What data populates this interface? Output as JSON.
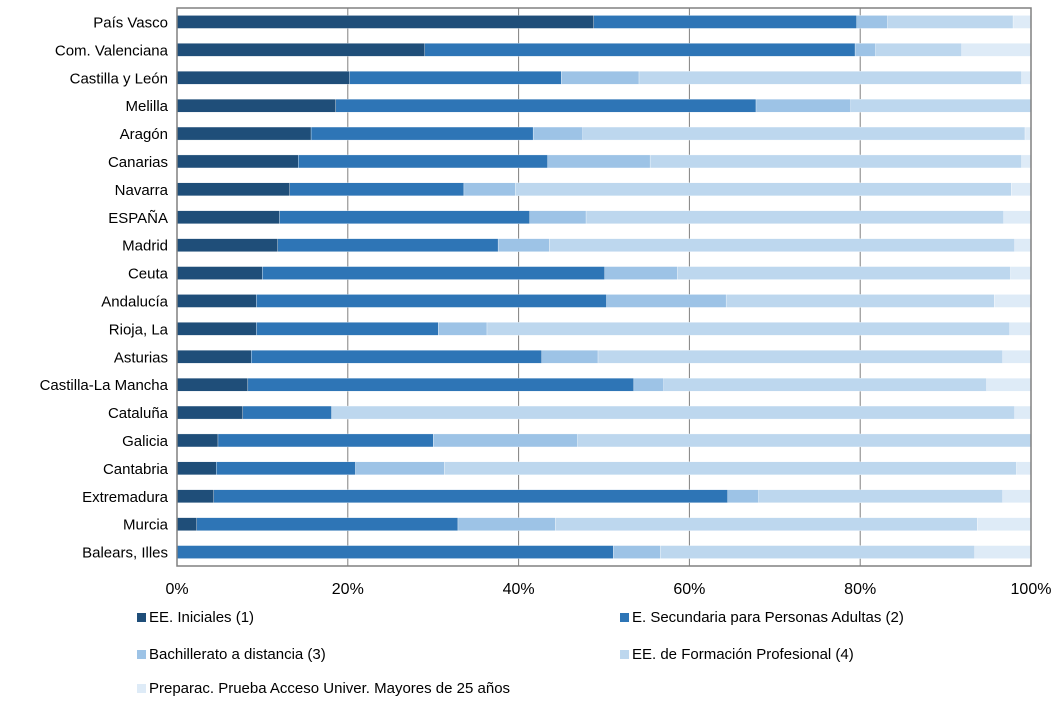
{
  "chart_data": {
    "type": "bar",
    "orientation": "horizontal",
    "stacked": "percent",
    "categories": [
      "País Vasco",
      "Com. Valenciana",
      "Castilla y León",
      "Melilla",
      "Aragón",
      "Canarias",
      "Navarra",
      "ESPAÑA",
      "Madrid",
      "Ceuta",
      "Andalucía",
      "Rioja, La",
      "Asturias",
      "Castilla-La Mancha",
      "Cataluña",
      "Galicia",
      "Cantabria",
      "Extremadura",
      "Murcia",
      "Balears, Illes"
    ],
    "series": [
      {
        "name": "EE. Iniciales (1)",
        "color": "#1f4e79",
        "values": [
          48.8,
          29.0,
          20.2,
          18.6,
          15.7,
          14.2,
          13.2,
          12.0,
          11.8,
          10.0,
          9.3,
          9.3,
          8.7,
          8.3,
          7.7,
          4.8,
          4.6,
          4.3,
          2.3,
          0.0
        ]
      },
      {
        "name": "E. Secundaria para Personas Adultas (2)",
        "color": "#2e75b6",
        "values": [
          30.8,
          50.4,
          24.8,
          49.2,
          26.0,
          29.2,
          20.4,
          29.3,
          25.8,
          40.1,
          41.0,
          21.3,
          34.0,
          45.2,
          10.4,
          25.2,
          16.3,
          60.2,
          30.6,
          51.1
        ]
      },
      {
        "name": "Bachillerato a distancia (3)",
        "color": "#9dc3e6",
        "values": [
          3.6,
          2.4,
          9.1,
          11.1,
          5.8,
          12.0,
          6.0,
          6.6,
          6.0,
          8.5,
          14.0,
          5.7,
          6.6,
          3.5,
          0.0,
          16.9,
          10.4,
          3.6,
          11.4,
          5.5
        ]
      },
      {
        "name": "EE. de Formación Profesional (4)",
        "color": "#bdd7ee",
        "values": [
          14.7,
          10.1,
          44.8,
          21.1,
          51.8,
          43.5,
          58.1,
          48.9,
          54.5,
          39.0,
          31.4,
          61.2,
          47.4,
          37.8,
          80.0,
          53.1,
          67.0,
          28.6,
          49.4,
          36.8
        ]
      },
      {
        "name": "Preparac. Prueba Acceso Univer. Mayores de 25 años",
        "color": "#deebf7",
        "values": [
          2.1,
          8.1,
          1.1,
          0.0,
          0.7,
          1.1,
          2.3,
          3.2,
          1.9,
          2.4,
          4.3,
          2.5,
          3.3,
          5.2,
          1.9,
          0.0,
          1.7,
          3.3,
          6.3,
          6.6
        ]
      }
    ],
    "x_ticks": [
      "0%",
      "20%",
      "40%",
      "60%",
      "80%",
      "100%"
    ],
    "xlim": [
      0,
      100
    ],
    "grid": true,
    "legend_position": "bottom",
    "title": "",
    "xlabel": "",
    "ylabel": ""
  }
}
